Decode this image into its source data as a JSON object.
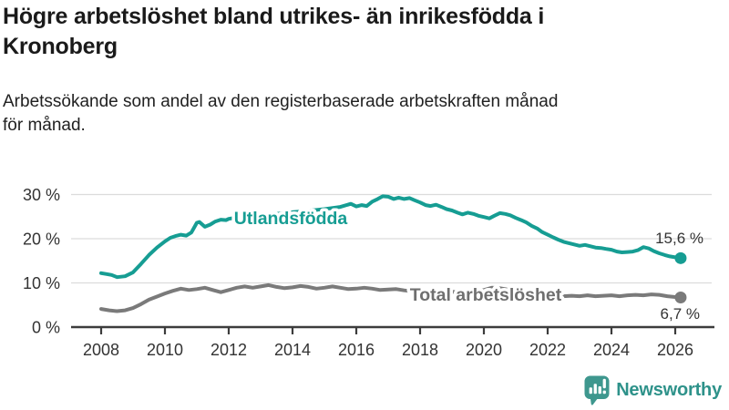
{
  "header": {
    "title": "Högre arbetslöshet bland utrikes- än inrikesfödda i\nKronoberg",
    "subtitle": "Arbetssökande som andel av den registerbaserade arbetskraften månad\nför månad."
  },
  "chart_data": {
    "type": "line",
    "title": "Högre arbetslöshet bland utrikes- än inrikesfödda i Kronoberg",
    "subtitle": "Arbetssökande som andel av den registerbaserade arbetskraften månad för månad.",
    "unit": "%",
    "xlim": [
      2007.8,
      2026.6
    ],
    "ylim": [
      0,
      32
    ],
    "grid": "horizontal",
    "legend_position": "inline-labels",
    "x_ticks": [
      {
        "value": 2008,
        "label": "2008"
      },
      {
        "value": 2010,
        "label": "2010"
      },
      {
        "value": 2012,
        "label": "2012"
      },
      {
        "value": 2014,
        "label": "2014"
      },
      {
        "value": 2016,
        "label": "2016"
      },
      {
        "value": 2018,
        "label": "2018"
      },
      {
        "value": 2020,
        "label": "2020"
      },
      {
        "value": 2022,
        "label": "2022"
      },
      {
        "value": 2024,
        "label": "2024"
      },
      {
        "value": 2026,
        "label": "2026"
      }
    ],
    "y_ticks": [
      {
        "value": 30,
        "label": "30 %"
      },
      {
        "value": 20,
        "label": "20 %"
      },
      {
        "value": 10,
        "label": "10 %"
      },
      {
        "value": 0,
        "label": "0 %"
      }
    ],
    "series": [
      {
        "name": "Utlandsfödda",
        "color": "#169d93",
        "end_label": "15,6 %",
        "end_value": 15.6,
        "points": [
          [
            2008.0,
            12.2
          ],
          [
            2008.17,
            12.0
          ],
          [
            2008.33,
            11.8
          ],
          [
            2008.5,
            11.3
          ],
          [
            2008.75,
            11.5
          ],
          [
            2009.0,
            12.4
          ],
          [
            2009.25,
            14.3
          ],
          [
            2009.5,
            16.3
          ],
          [
            2009.75,
            18.0
          ],
          [
            2010.0,
            19.4
          ],
          [
            2010.17,
            20.2
          ],
          [
            2010.33,
            20.6
          ],
          [
            2010.5,
            20.9
          ],
          [
            2010.67,
            20.7
          ],
          [
            2010.83,
            21.4
          ],
          [
            2011.0,
            23.6
          ],
          [
            2011.08,
            23.8
          ],
          [
            2011.25,
            22.7
          ],
          [
            2011.42,
            23.2
          ],
          [
            2011.58,
            23.9
          ],
          [
            2011.75,
            24.3
          ],
          [
            2011.92,
            24.2
          ],
          [
            2012.0,
            24.5
          ],
          [
            2012.25,
            24.8
          ],
          [
            2012.5,
            25.0
          ],
          [
            2013.0,
            25.3
          ],
          [
            2013.5,
            25.6
          ],
          [
            2014.0,
            26.0
          ],
          [
            2014.5,
            26.3
          ],
          [
            2015.0,
            26.7
          ],
          [
            2015.5,
            27.2
          ],
          [
            2015.83,
            27.9
          ],
          [
            2016.0,
            27.3
          ],
          [
            2016.17,
            27.6
          ],
          [
            2016.33,
            27.4
          ],
          [
            2016.5,
            28.4
          ],
          [
            2016.67,
            29.0
          ],
          [
            2016.83,
            29.6
          ],
          [
            2017.0,
            29.5
          ],
          [
            2017.17,
            29.0
          ],
          [
            2017.33,
            29.3
          ],
          [
            2017.5,
            29.0
          ],
          [
            2017.67,
            29.2
          ],
          [
            2017.83,
            28.7
          ],
          [
            2018.0,
            28.2
          ],
          [
            2018.17,
            27.6
          ],
          [
            2018.33,
            27.4
          ],
          [
            2018.5,
            27.7
          ],
          [
            2018.67,
            27.2
          ],
          [
            2018.83,
            26.7
          ],
          [
            2019.0,
            26.4
          ],
          [
            2019.17,
            25.9
          ],
          [
            2019.33,
            25.5
          ],
          [
            2019.5,
            25.9
          ],
          [
            2019.67,
            25.6
          ],
          [
            2019.83,
            25.2
          ],
          [
            2020.0,
            24.9
          ],
          [
            2020.17,
            24.6
          ],
          [
            2020.33,
            25.2
          ],
          [
            2020.5,
            25.8
          ],
          [
            2020.67,
            25.6
          ],
          [
            2020.83,
            25.3
          ],
          [
            2021.0,
            24.7
          ],
          [
            2021.17,
            24.2
          ],
          [
            2021.33,
            23.7
          ],
          [
            2021.5,
            22.9
          ],
          [
            2021.67,
            22.3
          ],
          [
            2021.83,
            21.5
          ],
          [
            2022.0,
            20.9
          ],
          [
            2022.17,
            20.3
          ],
          [
            2022.33,
            19.8
          ],
          [
            2022.5,
            19.3
          ],
          [
            2022.67,
            19.0
          ],
          [
            2022.83,
            18.7
          ],
          [
            2023.0,
            18.4
          ],
          [
            2023.17,
            18.6
          ],
          [
            2023.33,
            18.3
          ],
          [
            2023.5,
            18.0
          ],
          [
            2023.67,
            17.9
          ],
          [
            2023.83,
            17.7
          ],
          [
            2024.0,
            17.5
          ],
          [
            2024.17,
            17.1
          ],
          [
            2024.33,
            16.9
          ],
          [
            2024.5,
            17.0
          ],
          [
            2024.67,
            17.1
          ],
          [
            2024.83,
            17.4
          ],
          [
            2025.0,
            18.1
          ],
          [
            2025.17,
            17.8
          ],
          [
            2025.33,
            17.2
          ],
          [
            2025.5,
            16.7
          ],
          [
            2025.67,
            16.3
          ],
          [
            2025.83,
            16.0
          ],
          [
            2026.0,
            15.8
          ],
          [
            2026.17,
            15.6
          ]
        ]
      },
      {
        "name": "Total arbetslöshet",
        "color": "#7a7a7a",
        "end_label": "6,7 %",
        "end_value": 6.7,
        "points": [
          [
            2008.0,
            4.1
          ],
          [
            2008.25,
            3.8
          ],
          [
            2008.5,
            3.6
          ],
          [
            2008.75,
            3.8
          ],
          [
            2009.0,
            4.3
          ],
          [
            2009.25,
            5.2
          ],
          [
            2009.5,
            6.2
          ],
          [
            2009.75,
            6.9
          ],
          [
            2010.0,
            7.6
          ],
          [
            2010.25,
            8.2
          ],
          [
            2010.5,
            8.7
          ],
          [
            2010.75,
            8.4
          ],
          [
            2011.0,
            8.6
          ],
          [
            2011.25,
            8.9
          ],
          [
            2011.5,
            8.4
          ],
          [
            2011.75,
            7.9
          ],
          [
            2012.0,
            8.4
          ],
          [
            2012.25,
            8.9
          ],
          [
            2012.5,
            9.2
          ],
          [
            2012.75,
            8.9
          ],
          [
            2013.0,
            9.2
          ],
          [
            2013.25,
            9.5
          ],
          [
            2013.5,
            9.1
          ],
          [
            2013.75,
            8.8
          ],
          [
            2014.0,
            9.0
          ],
          [
            2014.25,
            9.3
          ],
          [
            2014.5,
            9.1
          ],
          [
            2014.75,
            8.7
          ],
          [
            2015.0,
            8.9
          ],
          [
            2015.25,
            9.2
          ],
          [
            2015.5,
            8.9
          ],
          [
            2015.75,
            8.6
          ],
          [
            2016.0,
            8.7
          ],
          [
            2016.25,
            8.9
          ],
          [
            2016.5,
            8.7
          ],
          [
            2016.75,
            8.4
          ],
          [
            2017.0,
            8.5
          ],
          [
            2017.25,
            8.6
          ],
          [
            2017.5,
            8.3
          ],
          [
            2017.75,
            8.1
          ],
          [
            2018.0,
            8.0
          ],
          [
            2018.25,
            7.9
          ],
          [
            2018.5,
            7.8
          ],
          [
            2018.75,
            7.9
          ],
          [
            2019.0,
            8.0
          ],
          [
            2019.25,
            7.9
          ],
          [
            2019.5,
            7.8
          ],
          [
            2019.75,
            8.0
          ],
          [
            2020.0,
            8.4
          ],
          [
            2020.25,
            8.9
          ],
          [
            2020.5,
            8.8
          ],
          [
            2020.75,
            8.5
          ],
          [
            2021.0,
            8.2
          ],
          [
            2021.25,
            7.9
          ],
          [
            2021.5,
            7.6
          ],
          [
            2021.75,
            7.4
          ],
          [
            2022.0,
            7.3
          ],
          [
            2022.25,
            7.1
          ],
          [
            2022.5,
            7.0
          ],
          [
            2022.75,
            7.1
          ],
          [
            2023.0,
            7.0
          ],
          [
            2023.25,
            7.2
          ],
          [
            2023.5,
            7.0
          ],
          [
            2023.75,
            7.1
          ],
          [
            2024.0,
            7.2
          ],
          [
            2024.25,
            7.0
          ],
          [
            2024.5,
            7.2
          ],
          [
            2024.75,
            7.3
          ],
          [
            2025.0,
            7.2
          ],
          [
            2025.25,
            7.4
          ],
          [
            2025.5,
            7.3
          ],
          [
            2025.75,
            7.0
          ],
          [
            2026.0,
            6.8
          ],
          [
            2026.17,
            6.7
          ]
        ]
      }
    ]
  },
  "branding": {
    "logo_text": "Newsworthy",
    "logo_color": "#2e928a",
    "logo_icon_color": "#3e978e"
  }
}
